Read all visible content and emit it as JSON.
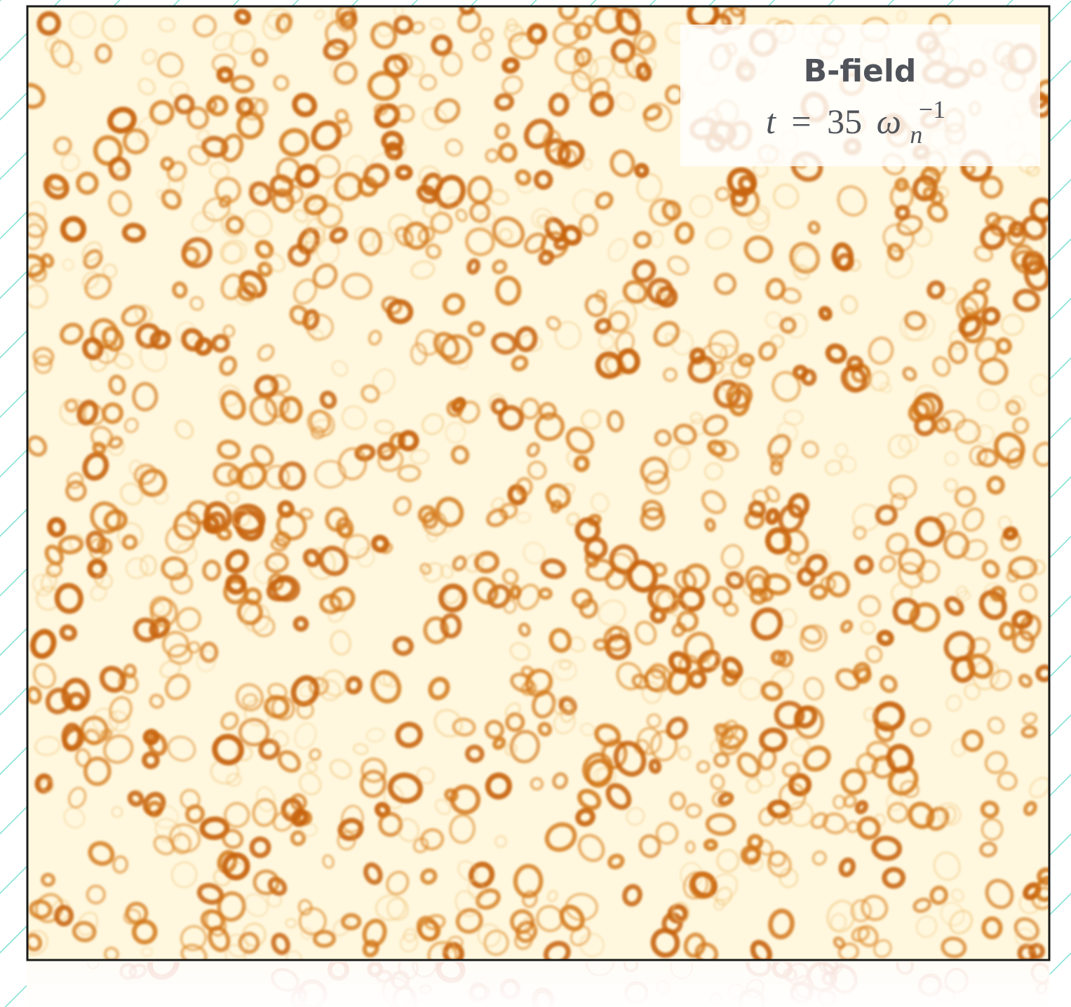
{
  "label": {
    "title": "B-field",
    "time": {
      "variable": "t",
      "equals": "=",
      "value": "35",
      "unit": "ω",
      "subscript": "n",
      "superscript": "−1"
    }
  }
}
